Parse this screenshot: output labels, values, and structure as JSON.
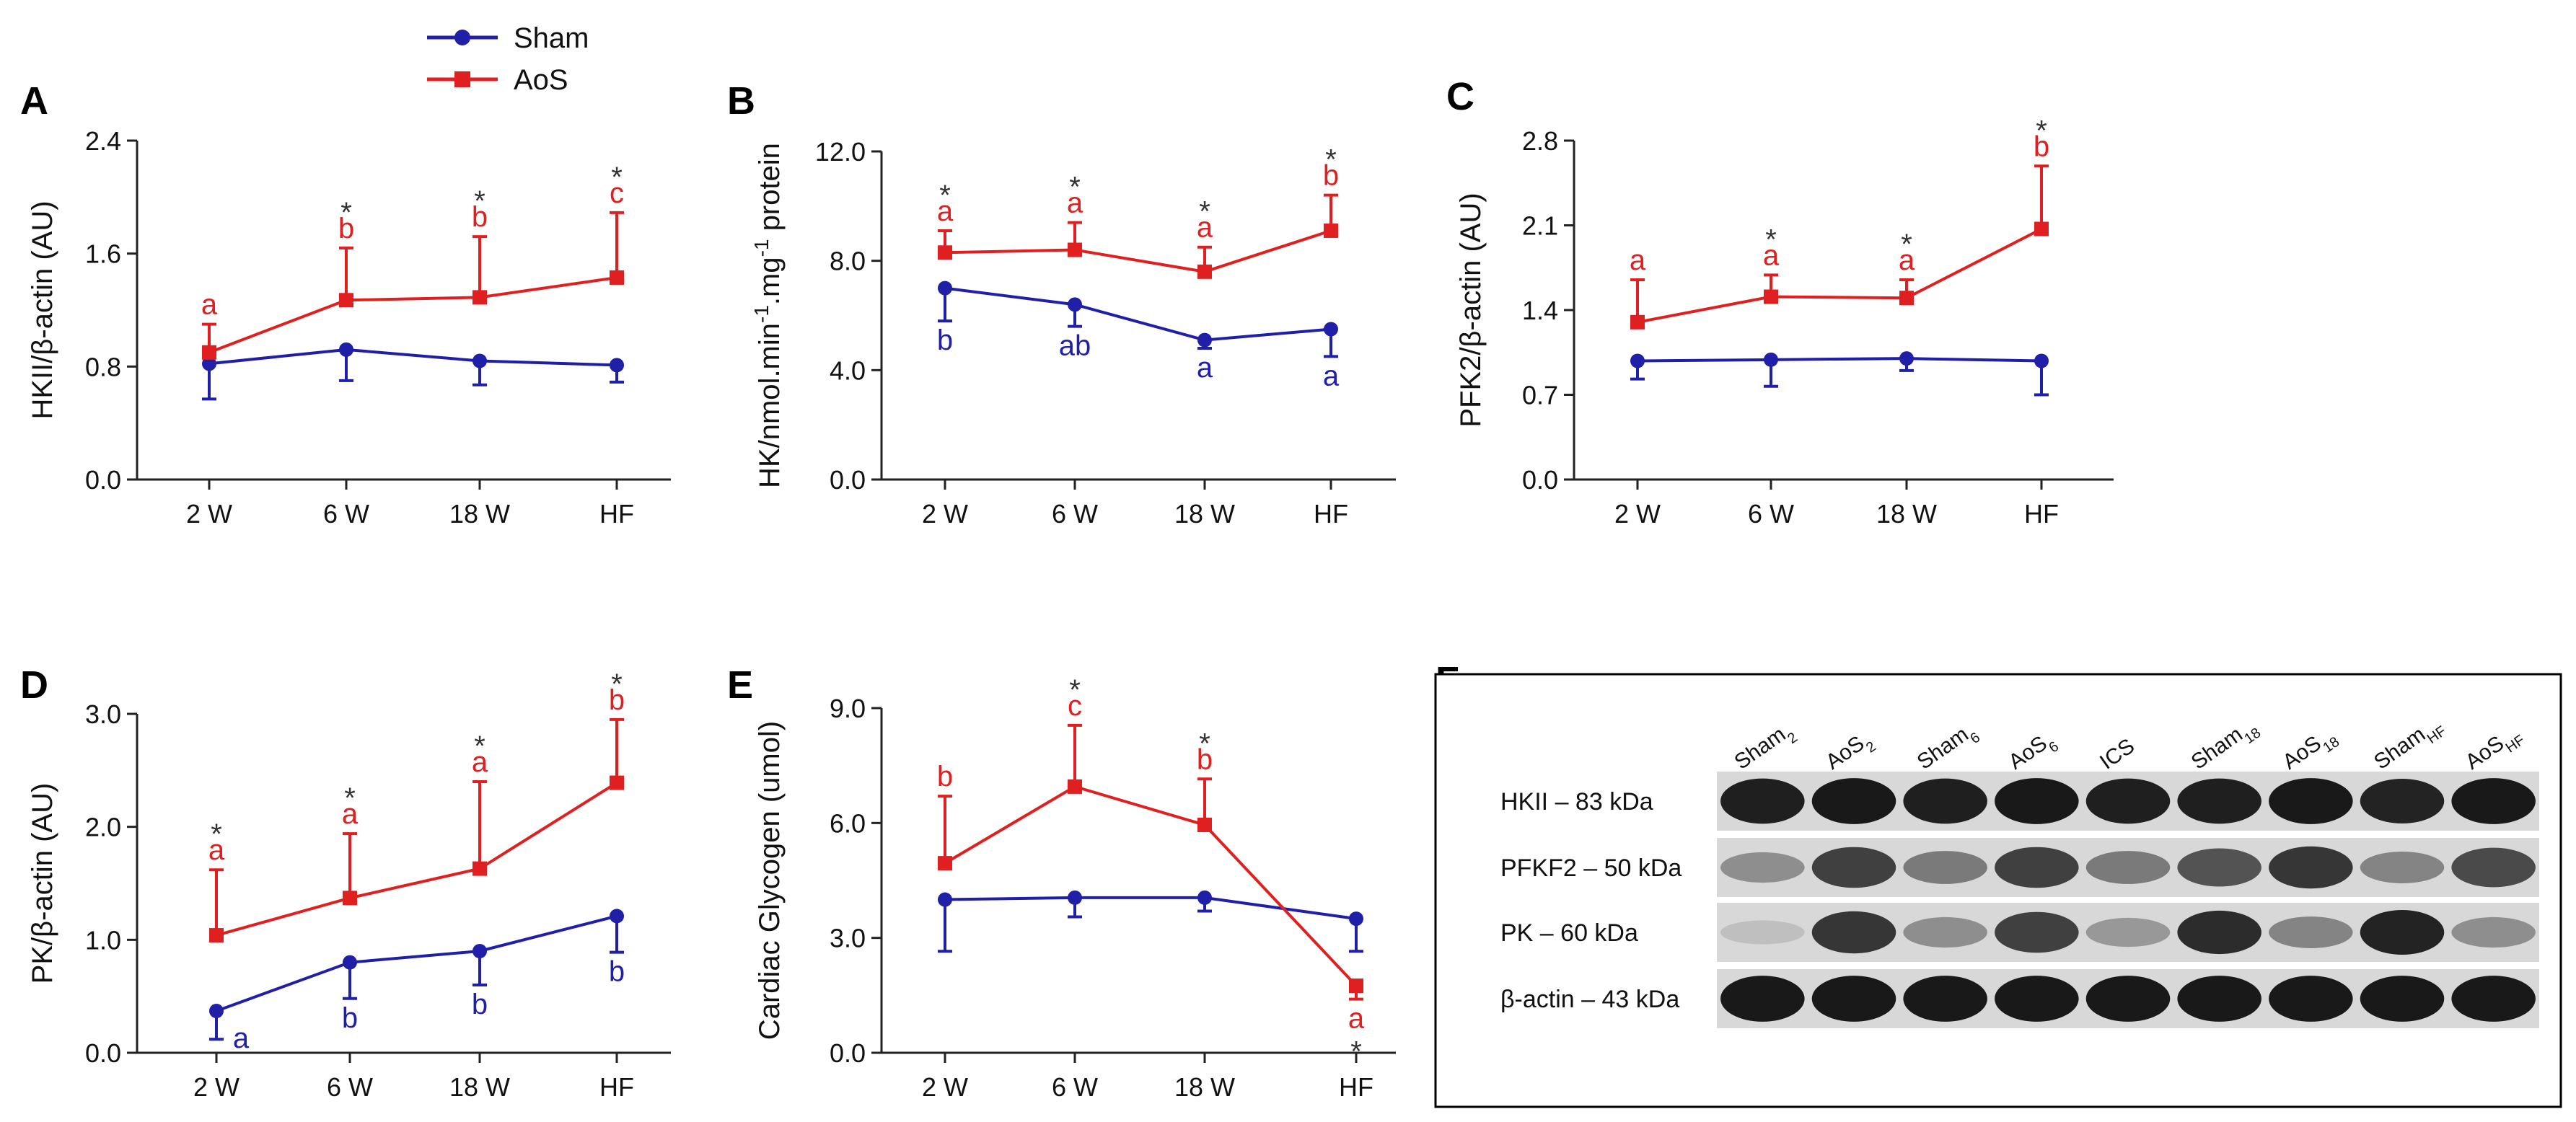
{
  "colors": {
    "sham": "#1f1fa8",
    "aos": "#e02020",
    "axis": "#222222",
    "star": "#333333"
  },
  "legend": {
    "sham": "Sham",
    "aos": "AoS"
  },
  "chart_data": [
    {
      "panel": "A",
      "type": "line",
      "categories": [
        "2 W",
        "6 W",
        "18 W",
        "HF"
      ],
      "ylabel": "HKII/β-actin (AU)",
      "ylim": [
        0,
        2.4
      ],
      "yticks": [
        "0.0",
        "0.8",
        "1.6",
        "2.4"
      ],
      "series": [
        {
          "name": "Sham",
          "values": [
            0.82,
            0.92,
            0.84,
            0.81
          ],
          "err": [
            0.25,
            0.22,
            0.17,
            0.12
          ],
          "errdir": "down",
          "labels": [
            "",
            "",
            "",
            ""
          ]
        },
        {
          "name": "AoS",
          "values": [
            0.9,
            1.27,
            1.29,
            1.43
          ],
          "err": [
            0.2,
            0.37,
            0.43,
            0.46
          ],
          "errdir": "up",
          "labels": [
            "a",
            "b",
            "b",
            "c"
          ],
          "stars": [
            "",
            "*",
            "*",
            "*"
          ]
        }
      ]
    },
    {
      "panel": "B",
      "type": "line",
      "categories": [
        "2 W",
        "6 W",
        "18 W",
        "HF"
      ],
      "ylabel": "HK/nmol.min-1.mg-1 protein",
      "ylabel_parts": [
        "HK/nmol.min",
        "-1",
        ".mg",
        "-1",
        " protein"
      ],
      "ylim": [
        0,
        12
      ],
      "yticks": [
        "0.0",
        "4.0",
        "8.0",
        "12.0"
      ],
      "series": [
        {
          "name": "Sham",
          "values": [
            7.0,
            6.4,
            5.1,
            5.5
          ],
          "err": [
            1.2,
            0.8,
            0.3,
            1.0
          ],
          "errdir": "down",
          "labels": [
            "b",
            "ab",
            "a",
            "a"
          ]
        },
        {
          "name": "AoS",
          "values": [
            8.3,
            8.4,
            7.6,
            9.1
          ],
          "err": [
            0.8,
            1.0,
            0.9,
            1.3
          ],
          "errdir": "up",
          "labels": [
            "a",
            "a",
            "a",
            "b"
          ],
          "stars": [
            "*",
            "*",
            "*",
            "*"
          ]
        }
      ]
    },
    {
      "panel": "C",
      "type": "line",
      "categories": [
        "2 W",
        "6 W",
        "18 W",
        "HF"
      ],
      "ylabel": "PFK2/β-actin (AU)",
      "ylim": [
        0,
        2.8
      ],
      "yticks": [
        "0.0",
        "0.7",
        "1.4",
        "2.1",
        "2.8"
      ],
      "series": [
        {
          "name": "Sham",
          "values": [
            0.98,
            0.99,
            1.0,
            0.98
          ],
          "err": [
            0.15,
            0.22,
            0.1,
            0.28
          ],
          "errdir": "down",
          "labels": [
            "",
            "",
            "",
            ""
          ]
        },
        {
          "name": "AoS",
          "values": [
            1.3,
            1.51,
            1.5,
            2.07
          ],
          "err": [
            0.35,
            0.18,
            0.15,
            0.52
          ],
          "errdir": "up",
          "labels": [
            "a",
            "a",
            "a",
            "b"
          ],
          "stars": [
            "",
            "*",
            "*",
            "*"
          ]
        }
      ]
    },
    {
      "panel": "D",
      "type": "line",
      "categories": [
        "2 W",
        "6 W",
        "18 W",
        "HF"
      ],
      "ylabel": "PK/β-actin (AU)",
      "ylim": [
        0,
        3.0
      ],
      "yticks": [
        "0.0",
        "1.0",
        "2.0",
        "3.0"
      ],
      "series": [
        {
          "name": "Sham",
          "values": [
            0.37,
            0.8,
            0.9,
            1.21
          ],
          "err": [
            0.25,
            0.32,
            0.3,
            0.32
          ],
          "errdir": "down",
          "labels": [
            "a",
            "b",
            "b",
            "b"
          ]
        },
        {
          "name": "AoS",
          "values": [
            1.04,
            1.37,
            1.63,
            2.39
          ],
          "err": [
            0.58,
            0.57,
            0.77,
            0.56
          ],
          "errdir": "up",
          "labels": [
            "a",
            "a",
            "a",
            "b"
          ],
          "stars": [
            "*",
            "*",
            "*",
            "*"
          ]
        }
      ]
    },
    {
      "panel": "E",
      "type": "line",
      "categories": [
        "2 W",
        "6 W",
        "18 W",
        "HF"
      ],
      "ylabel": "Cardiac Glycogen (umol)",
      "ylim": [
        0,
        9.0
      ],
      "yticks": [
        "0.0",
        "3.0",
        "6.0",
        "9.0"
      ],
      "series": [
        {
          "name": "Sham",
          "values": [
            4.0,
            4.05,
            4.05,
            3.5
          ],
          "err": [
            1.35,
            0.5,
            0.35,
            0.85
          ],
          "errdir": "down",
          "labels": [
            "",
            "",
            "",
            ""
          ]
        },
        {
          "name": "AoS",
          "values": [
            4.95,
            6.95,
            5.95,
            1.75
          ],
          "err": [
            1.75,
            1.6,
            1.2,
            0.35
          ],
          "errdir": "mixed",
          "labels": [
            "b",
            "c",
            "b",
            "a"
          ],
          "stars": [
            "",
            "*",
            "*",
            "*"
          ]
        }
      ]
    }
  ],
  "blot": {
    "panel": "F",
    "lanes": [
      {
        "base": "Sham",
        "sub": "2"
      },
      {
        "base": "AoS",
        "sub": "2"
      },
      {
        "base": "Sham",
        "sub": "6"
      },
      {
        "base": "AoS",
        "sub": "6"
      },
      {
        "base": "ICS",
        "sub": ""
      },
      {
        "base": "Sham",
        "sub": "18"
      },
      {
        "base": "AoS",
        "sub": "18"
      },
      {
        "base": "Sham",
        "sub": "HF"
      },
      {
        "base": "AoS",
        "sub": "HF"
      }
    ],
    "rows": [
      {
        "label": "HKII – 83 kDa",
        "intensity": [
          0.92,
          0.95,
          0.92,
          0.95,
          0.92,
          0.92,
          0.95,
          0.9,
          0.95
        ]
      },
      {
        "label": "PFKF2 – 50 kDa",
        "intensity": [
          0.35,
          0.75,
          0.45,
          0.75,
          0.45,
          0.65,
          0.8,
          0.4,
          0.7
        ]
      },
      {
        "label": "PK – 60 kDa",
        "intensity": [
          0.1,
          0.8,
          0.35,
          0.75,
          0.3,
          0.85,
          0.4,
          0.9,
          0.35
        ]
      },
      {
        "label": "β-actin – 43 kDa",
        "intensity": [
          0.95,
          0.95,
          0.95,
          0.95,
          0.95,
          0.95,
          0.95,
          0.95,
          0.95
        ]
      }
    ]
  }
}
